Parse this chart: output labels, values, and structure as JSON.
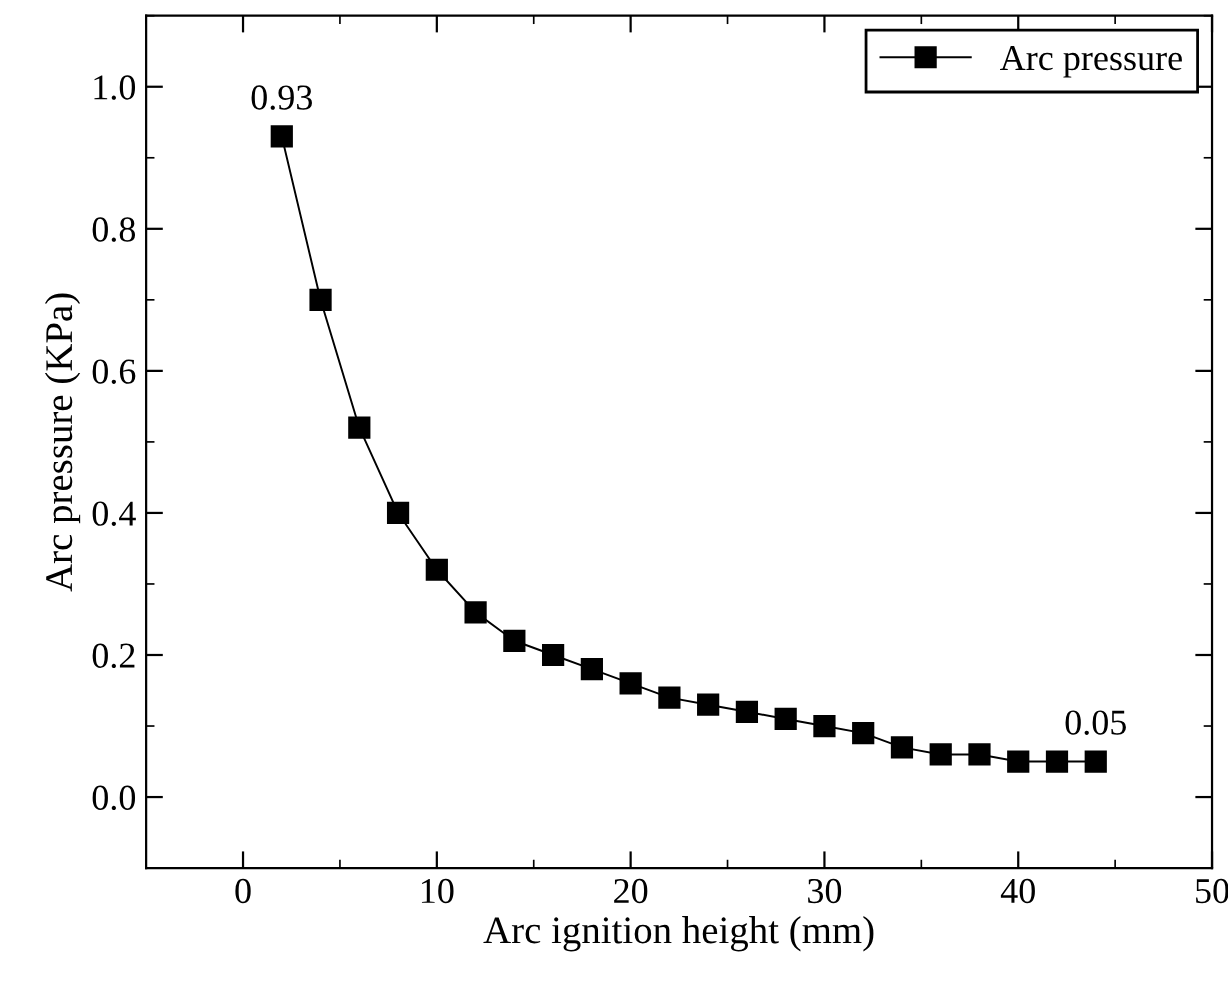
{
  "chart_data": {
    "type": "line",
    "xlabel": "Arc ignition height (mm)",
    "ylabel": "Arc pressure (KPa)",
    "x": [
      2,
      4,
      6,
      8,
      10,
      12,
      14,
      16,
      18,
      20,
      22,
      24,
      26,
      28,
      30,
      32,
      34,
      36,
      38,
      40,
      42,
      44
    ],
    "series": [
      {
        "name": "Arc pressure",
        "color": "#000000",
        "values": [
          0.93,
          0.7,
          0.52,
          0.4,
          0.32,
          0.26,
          0.22,
          0.2,
          0.18,
          0.16,
          0.14,
          0.13,
          0.12,
          0.11,
          0.1,
          0.09,
          0.07,
          0.06,
          0.06,
          0.05,
          0.05,
          0.05
        ],
        "value_labels": [
          "0.93",
          null,
          null,
          null,
          null,
          null,
          null,
          null,
          null,
          null,
          null,
          null,
          null,
          null,
          null,
          null,
          null,
          null,
          null,
          null,
          null,
          "0.05"
        ]
      }
    ],
    "xlim": [
      -5,
      50
    ],
    "ylim": [
      -0.1,
      1.1
    ],
    "xticks": [
      0,
      10,
      20,
      30,
      40,
      50
    ],
    "yticks": [
      {
        "value": 0,
        "label": "0.0"
      },
      {
        "value": 0.2,
        "label": "0.2"
      },
      {
        "value": 0.4,
        "label": "0.4"
      },
      {
        "value": 0.6,
        "label": "0.6"
      },
      {
        "value": 0.8,
        "label": "0.8"
      },
      {
        "value": 1.0,
        "label": "1.0"
      }
    ],
    "marker": "square",
    "line_style": "solid",
    "legend": "top right",
    "grid": false
  }
}
